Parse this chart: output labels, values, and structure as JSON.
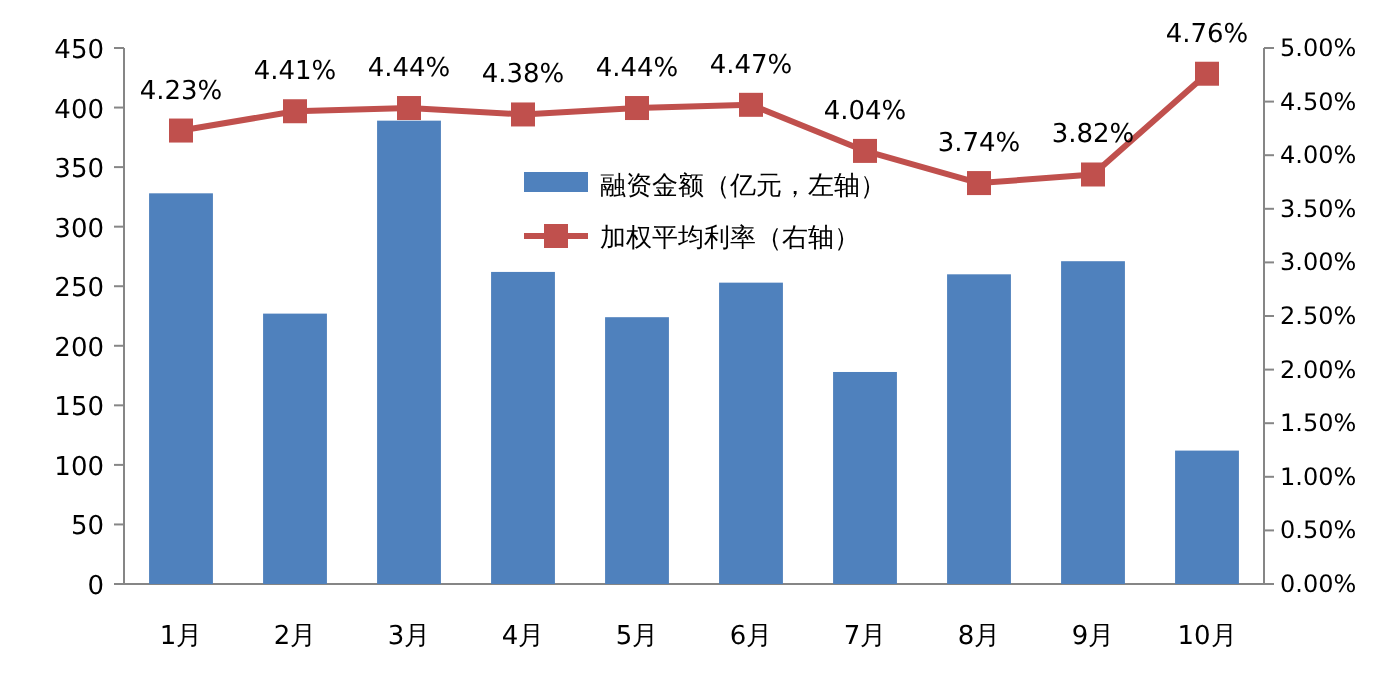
{
  "chart_data": {
    "type": "bar",
    "categories": [
      "1月",
      "2月",
      "3月",
      "4月",
      "5月",
      "6月",
      "7月",
      "8月",
      "9月",
      "10月"
    ],
    "series": [
      {
        "name": "融资金额（亿元，左轴）",
        "color": "#4f81bd",
        "values": [
          328,
          227,
          389,
          262,
          224,
          253,
          178,
          260,
          271,
          112
        ]
      },
      {
        "name": "加权平均利率（右轴）",
        "type": "line",
        "axis": "y2",
        "color": "#c0504d",
        "marker": "square",
        "line_style": "solid",
        "values": [
          4.23,
          4.41,
          4.44,
          4.38,
          4.44,
          4.47,
          4.04,
          3.74,
          3.82,
          4.76
        ],
        "value_labels": [
          "4.23%",
          "4.41%",
          "4.44%",
          "4.38%",
          "4.44%",
          "4.47%",
          "4.04%",
          "3.74%",
          "3.82%",
          "4.76%"
        ]
      }
    ],
    "ylim": [
      0,
      450
    ],
    "yticks": [
      0,
      50,
      100,
      150,
      200,
      250,
      300,
      350,
      400,
      450
    ],
    "y2lim": [
      0,
      5
    ],
    "y2ticks": [
      {
        "value": 0,
        "label": "0.00%"
      },
      {
        "value": 0.5,
        "label": "0.50%"
      },
      {
        "value": 1,
        "label": "1.00%"
      },
      {
        "value": 1.5,
        "label": "1.50%"
      },
      {
        "value": 2,
        "label": "2.00%"
      },
      {
        "value": 2.5,
        "label": "2.50%"
      },
      {
        "value": 3,
        "label": "3.00%"
      },
      {
        "value": 3.5,
        "label": "3.50%"
      },
      {
        "value": 4,
        "label": "4.00%"
      },
      {
        "value": 4.5,
        "label": "4.50%"
      },
      {
        "value": 5,
        "label": "5.00%"
      }
    ],
    "legend": "top",
    "grid": false
  }
}
